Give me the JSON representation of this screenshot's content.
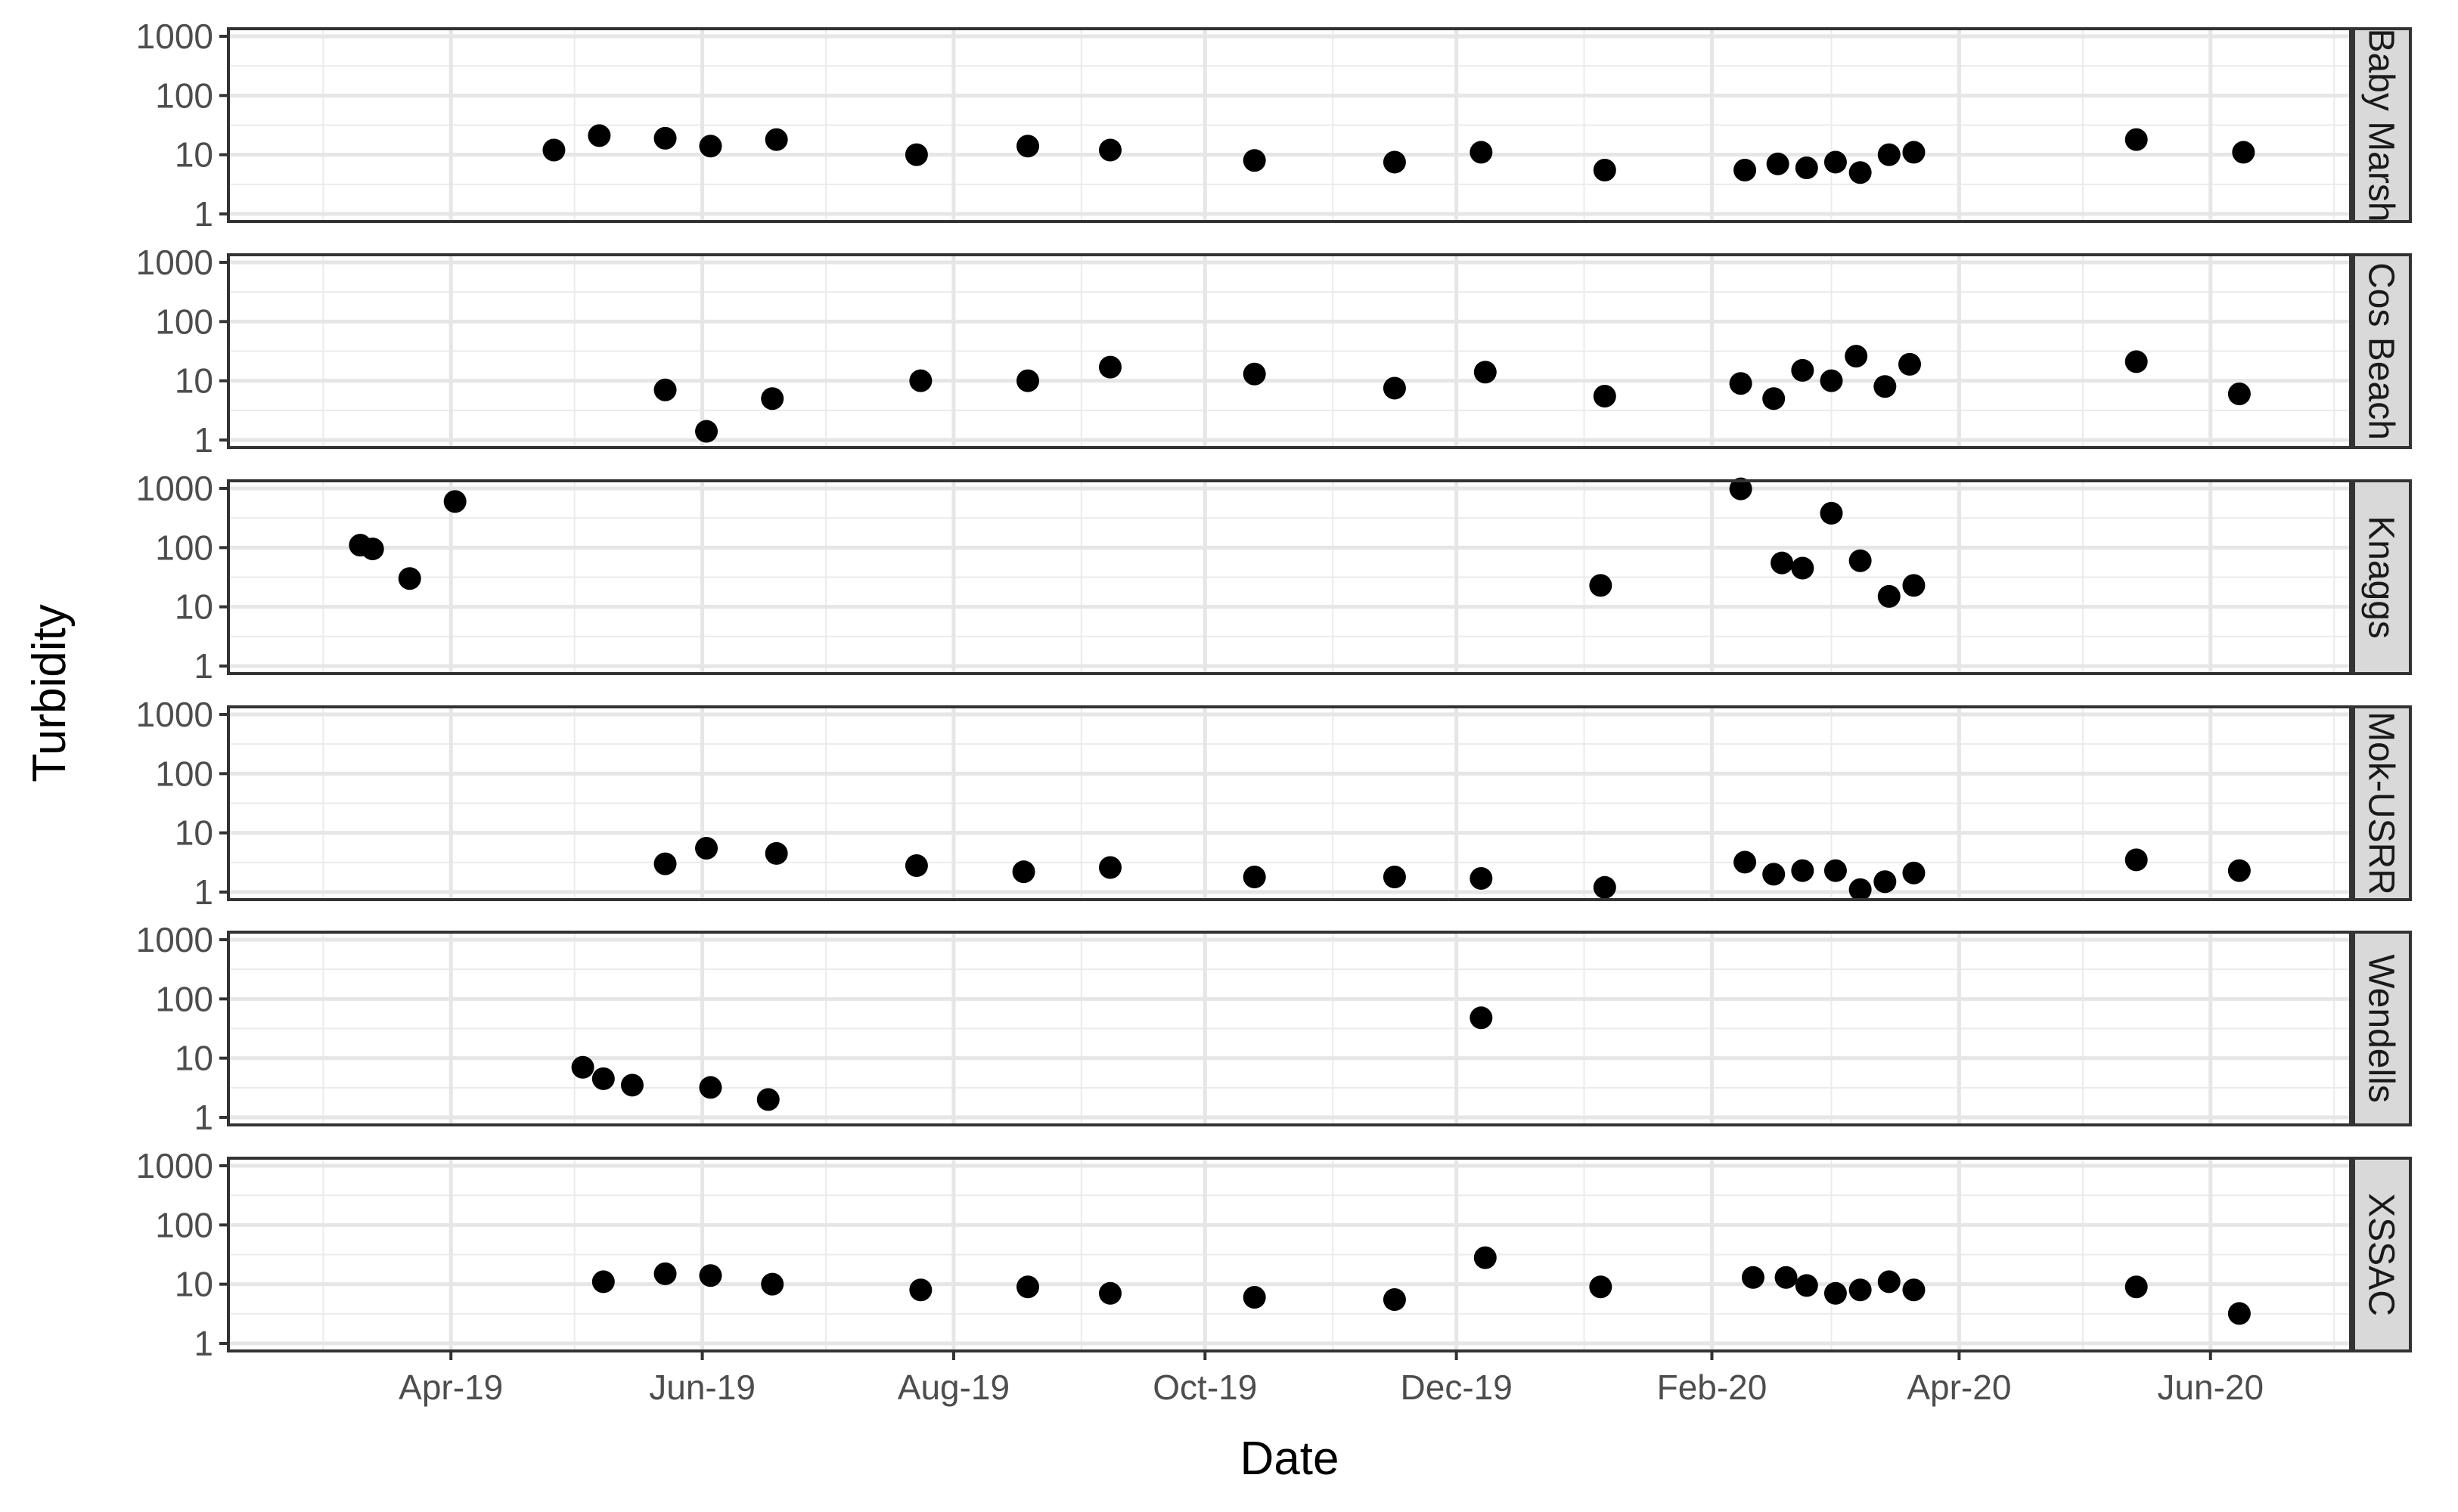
{
  "chart_data": {
    "type": "scatter",
    "title": "",
    "xlabel": "Date",
    "ylabel": "Turbidity",
    "y_scale": "log10",
    "ylim": [
      1,
      1000
    ],
    "xlim": [
      "2019-02-06",
      "2020-07-05"
    ],
    "y_ticks": [
      {
        "value": 1,
        "label": "1"
      },
      {
        "value": 10,
        "label": "10"
      },
      {
        "value": 100,
        "label": "100"
      },
      {
        "value": 1000,
        "label": "1000"
      }
    ],
    "x_ticks": [
      {
        "date": "2019-04-01",
        "label": "Apr-19"
      },
      {
        "date": "2019-06-01",
        "label": "Jun-19"
      },
      {
        "date": "2019-08-01",
        "label": "Aug-19"
      },
      {
        "date": "2019-10-01",
        "label": "Oct-19"
      },
      {
        "date": "2019-12-01",
        "label": "Dec-19"
      },
      {
        "date": "2020-02-01",
        "label": "Feb-20"
      },
      {
        "date": "2020-04-01",
        "label": "Apr-20"
      },
      {
        "date": "2020-06-01",
        "label": "Jun-20"
      }
    ],
    "x_minor_gridlines": [
      "2019-03-01",
      "2019-05-01",
      "2019-07-01",
      "2019-09-01",
      "2019-11-01",
      "2020-01-01",
      "2020-03-01",
      "2020-05-01",
      "2020-07-01"
    ],
    "grid": true,
    "point_color": "#000000",
    "panels": [
      {
        "strip_label": "Baby Marsh",
        "points": [
          {
            "x": "2019-04-26",
            "y": 12
          },
          {
            "x": "2019-05-07",
            "y": 21
          },
          {
            "x": "2019-05-23",
            "y": 19
          },
          {
            "x": "2019-06-03",
            "y": 14
          },
          {
            "x": "2019-06-19",
            "y": 18
          },
          {
            "x": "2019-07-23",
            "y": 10
          },
          {
            "x": "2019-08-19",
            "y": 14
          },
          {
            "x": "2019-09-08",
            "y": 12
          },
          {
            "x": "2019-10-13",
            "y": 8
          },
          {
            "x": "2019-11-16",
            "y": 7.5
          },
          {
            "x": "2019-12-07",
            "y": 11
          },
          {
            "x": "2020-01-06",
            "y": 5.5
          },
          {
            "x": "2020-02-09",
            "y": 5.5
          },
          {
            "x": "2020-02-17",
            "y": 7
          },
          {
            "x": "2020-02-24",
            "y": 6
          },
          {
            "x": "2020-03-02",
            "y": 7.5
          },
          {
            "x": "2020-03-08",
            "y": 5
          },
          {
            "x": "2020-03-15",
            "y": 10
          },
          {
            "x": "2020-03-21",
            "y": 11
          },
          {
            "x": "2020-05-14",
            "y": 18
          },
          {
            "x": "2020-06-09",
            "y": 11
          }
        ]
      },
      {
        "strip_label": "Cos Beach",
        "points": [
          {
            "x": "2019-05-23",
            "y": 7
          },
          {
            "x": "2019-06-02",
            "y": 1.4
          },
          {
            "x": "2019-06-18",
            "y": 5
          },
          {
            "x": "2019-07-24",
            "y": 10
          },
          {
            "x": "2019-08-19",
            "y": 10
          },
          {
            "x": "2019-09-08",
            "y": 17
          },
          {
            "x": "2019-10-13",
            "y": 13
          },
          {
            "x": "2019-11-16",
            "y": 7.5
          },
          {
            "x": "2019-12-08",
            "y": 14
          },
          {
            "x": "2020-01-06",
            "y": 5.5
          },
          {
            "x": "2020-02-08",
            "y": 9
          },
          {
            "x": "2020-02-16",
            "y": 5
          },
          {
            "x": "2020-02-23",
            "y": 15
          },
          {
            "x": "2020-03-01",
            "y": 10
          },
          {
            "x": "2020-03-07",
            "y": 26
          },
          {
            "x": "2020-03-14",
            "y": 8
          },
          {
            "x": "2020-03-20",
            "y": 19
          },
          {
            "x": "2020-05-14",
            "y": 21
          },
          {
            "x": "2020-06-08",
            "y": 6
          }
        ]
      },
      {
        "strip_label": "Knaggs",
        "points": [
          {
            "x": "2019-03-10",
            "y": 110
          },
          {
            "x": "2019-03-13",
            "y": 95
          },
          {
            "x": "2019-03-22",
            "y": 30
          },
          {
            "x": "2019-04-02",
            "y": 600
          },
          {
            "x": "2020-01-05",
            "y": 23
          },
          {
            "x": "2020-02-08",
            "y": 980
          },
          {
            "x": "2020-02-18",
            "y": 55
          },
          {
            "x": "2020-02-23",
            "y": 45
          },
          {
            "x": "2020-03-01",
            "y": 380
          },
          {
            "x": "2020-03-08",
            "y": 60
          },
          {
            "x": "2020-03-15",
            "y": 15
          },
          {
            "x": "2020-03-21",
            "y": 23
          }
        ]
      },
      {
        "strip_label": "Mok-USRR",
        "points": [
          {
            "x": "2019-05-23",
            "y": 3
          },
          {
            "x": "2019-06-02",
            "y": 5.5
          },
          {
            "x": "2019-06-19",
            "y": 4.5
          },
          {
            "x": "2019-07-23",
            "y": 2.8
          },
          {
            "x": "2019-08-18",
            "y": 2.2
          },
          {
            "x": "2019-09-08",
            "y": 2.6
          },
          {
            "x": "2019-10-13",
            "y": 1.8
          },
          {
            "x": "2019-11-16",
            "y": 1.8
          },
          {
            "x": "2019-12-07",
            "y": 1.7
          },
          {
            "x": "2020-01-06",
            "y": 1.2
          },
          {
            "x": "2020-02-09",
            "y": 3.2
          },
          {
            "x": "2020-02-16",
            "y": 2
          },
          {
            "x": "2020-02-23",
            "y": 2.3
          },
          {
            "x": "2020-03-02",
            "y": 2.3
          },
          {
            "x": "2020-03-08",
            "y": 1.1
          },
          {
            "x": "2020-03-14",
            "y": 1.5
          },
          {
            "x": "2020-03-21",
            "y": 2.1
          },
          {
            "x": "2020-05-14",
            "y": 3.5
          },
          {
            "x": "2020-06-08",
            "y": 2.3
          }
        ]
      },
      {
        "strip_label": "Wendells",
        "points": [
          {
            "x": "2019-05-03",
            "y": 7
          },
          {
            "x": "2019-05-08",
            "y": 4.5
          },
          {
            "x": "2019-05-15",
            "y": 3.5
          },
          {
            "x": "2019-06-03",
            "y": 3.2
          },
          {
            "x": "2019-06-17",
            "y": 2
          },
          {
            "x": "2019-12-07",
            "y": 48
          }
        ]
      },
      {
        "strip_label": "XSSAC",
        "points": [
          {
            "x": "2019-05-08",
            "y": 11
          },
          {
            "x": "2019-05-23",
            "y": 15
          },
          {
            "x": "2019-06-03",
            "y": 14
          },
          {
            "x": "2019-06-18",
            "y": 10
          },
          {
            "x": "2019-07-24",
            "y": 8
          },
          {
            "x": "2019-08-19",
            "y": 9
          },
          {
            "x": "2019-09-08",
            "y": 7
          },
          {
            "x": "2019-10-13",
            "y": 6
          },
          {
            "x": "2019-11-16",
            "y": 5.5
          },
          {
            "x": "2019-12-08",
            "y": 28
          },
          {
            "x": "2020-01-05",
            "y": 9
          },
          {
            "x": "2020-02-11",
            "y": 13
          },
          {
            "x": "2020-02-19",
            "y": 13
          },
          {
            "x": "2020-02-24",
            "y": 9.5
          },
          {
            "x": "2020-03-02",
            "y": 7
          },
          {
            "x": "2020-03-08",
            "y": 8
          },
          {
            "x": "2020-03-15",
            "y": 11
          },
          {
            "x": "2020-03-21",
            "y": 8
          },
          {
            "x": "2020-05-14",
            "y": 9
          },
          {
            "x": "2020-06-08",
            "y": 3.2
          }
        ]
      }
    ]
  }
}
